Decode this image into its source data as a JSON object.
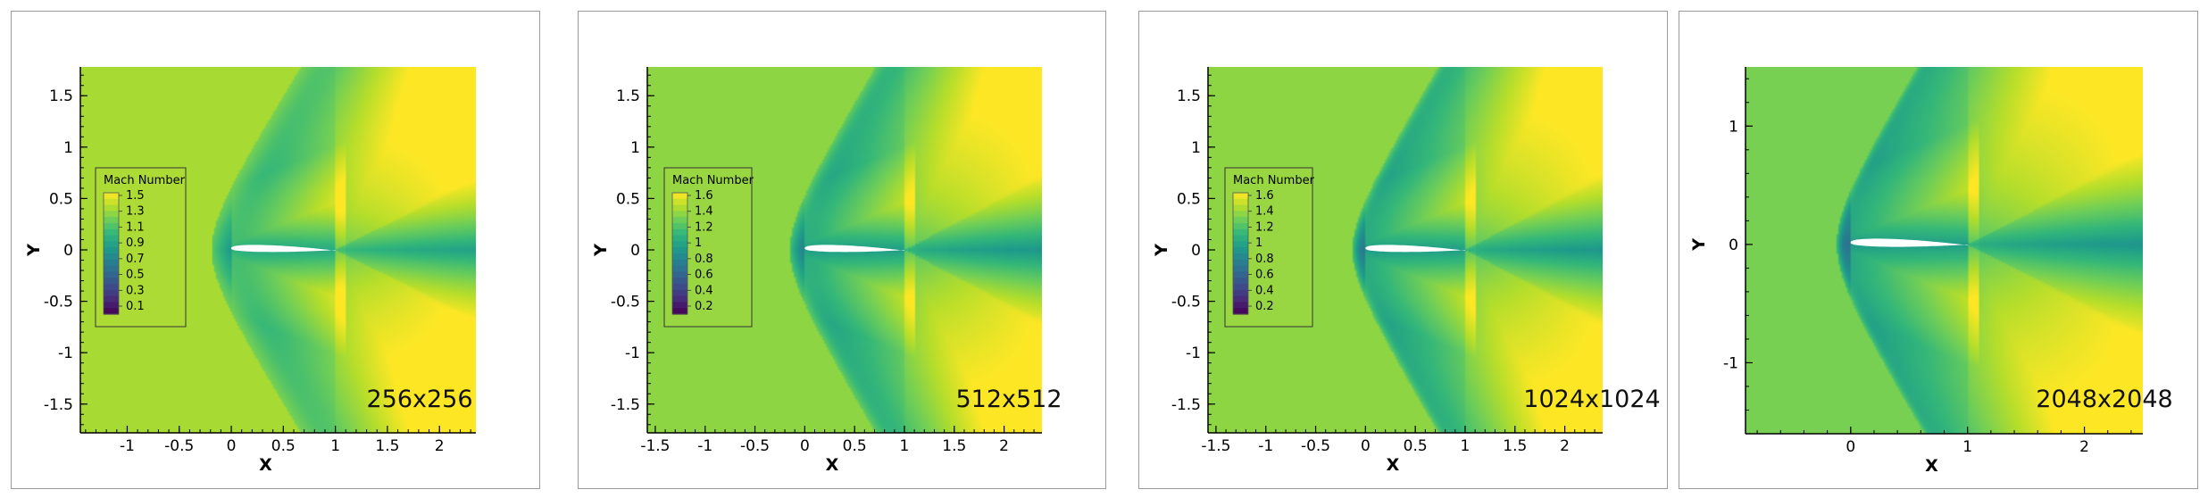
{
  "colors": {
    "colormap": [
      "#440154",
      "#482878",
      "#3e4a89",
      "#31688e",
      "#26828e",
      "#1f9e89",
      "#35b779",
      "#6ece58",
      "#b5de2b",
      "#fde725"
    ],
    "airfoil": "#ffffff",
    "frame": "#9a9a9a"
  },
  "chart_data": [
    {
      "type": "heatmap",
      "resolution_label": "256x256",
      "xlabel": "X",
      "ylabel": "Y",
      "xlim": [
        -1.45,
        2.35
      ],
      "ylim": [
        -1.78,
        1.78
      ],
      "xticks": [
        -1,
        -0.5,
        0,
        0.5,
        1,
        1.5,
        2
      ],
      "xtick_labels": [
        "-1",
        "-0.5",
        "0",
        "0.5",
        "1",
        "1.5",
        "2"
      ],
      "yticks": [
        -1.5,
        -1,
        -0.5,
        0,
        0.5,
        1,
        1.5
      ],
      "ytick_labels": [
        "-1.5",
        "-1",
        "-0.5",
        "0",
        "0.5",
        "1",
        "1.5"
      ],
      "legend": {
        "title": "Mach Number",
        "placement": "left",
        "levels": [
          "1.5",
          "1.3",
          "1.1",
          "0.9",
          "0.7",
          "0.5",
          "0.3",
          "0.1"
        ],
        "range": [
          0.1,
          1.6
        ]
      },
      "field": {
        "variable": "Mach Number",
        "freestream": 1.4,
        "airfoil_chord": [
          0,
          1
        ],
        "shock_blur": 0.09
      }
    },
    {
      "type": "heatmap",
      "resolution_label": "512x512",
      "xlabel": "X",
      "ylabel": "Y",
      "xlim": [
        -1.58,
        2.38
      ],
      "ylim": [
        -1.78,
        1.78
      ],
      "xticks": [
        -1.5,
        -1,
        -0.5,
        0,
        0.5,
        1,
        1.5,
        2
      ],
      "xtick_labels": [
        "-1.5",
        "-1",
        "-0.5",
        "0",
        "0.5",
        "1",
        "1.5",
        "2"
      ],
      "yticks": [
        -1.5,
        -1,
        -0.5,
        0,
        0.5,
        1,
        1.5
      ],
      "ytick_labels": [
        "-1.5",
        "-1",
        "-0.5",
        "0",
        "0.5",
        "1",
        "1.5"
      ],
      "legend": {
        "title": "Mach Number",
        "placement": "left",
        "levels": [
          "1.6",
          "1.4",
          "1.2",
          "1",
          "0.8",
          "0.6",
          "0.4",
          "0.2"
        ],
        "range": [
          0.2,
          1.65
        ]
      },
      "field": {
        "variable": "Mach Number",
        "freestream": 1.4,
        "airfoil_chord": [
          0,
          1
        ],
        "shock_blur": 0.05
      }
    },
    {
      "type": "heatmap",
      "resolution_label": "1024x1024",
      "xlabel": "X",
      "ylabel": "Y",
      "xlim": [
        -1.58,
        2.38
      ],
      "ylim": [
        -1.78,
        1.78
      ],
      "xticks": [
        -1.5,
        -1,
        -0.5,
        0,
        0.5,
        1,
        1.5,
        2
      ],
      "xtick_labels": [
        "-1.5",
        "-1",
        "-0.5",
        "0",
        "0.5",
        "1",
        "1.5",
        "2"
      ],
      "yticks": [
        -1.5,
        -1,
        -0.5,
        0,
        0.5,
        1,
        1.5
      ],
      "ytick_labels": [
        "-1.5",
        "-1",
        "-0.5",
        "0",
        "0.5",
        "1",
        "1.5"
      ],
      "legend": {
        "title": "Mach Number",
        "placement": "left",
        "levels": [
          "1.6",
          "1.4",
          "1.2",
          "1",
          "0.8",
          "0.6",
          "0.4",
          "0.2"
        ],
        "range": [
          0.2,
          1.65
        ]
      },
      "field": {
        "variable": "Mach Number",
        "freestream": 1.4,
        "airfoil_chord": [
          0,
          1
        ],
        "shock_blur": 0.03
      }
    },
    {
      "type": "heatmap",
      "resolution_label": "2048x2048",
      "xlabel": "X",
      "ylabel": "Y",
      "xlim": [
        -0.9,
        2.5
      ],
      "ylim": [
        -1.6,
        1.5
      ],
      "xticks": [
        0,
        1,
        2
      ],
      "xtick_labels": [
        "0",
        "1",
        "2"
      ],
      "yticks": [
        -1,
        0,
        1
      ],
      "ytick_labels": [
        "-1",
        "0",
        "1"
      ],
      "legend": null,
      "field": {
        "variable": "Mach Number",
        "freestream": 1.35,
        "airfoil_chord": [
          0,
          1
        ],
        "shock_blur": 0.02
      }
    }
  ]
}
